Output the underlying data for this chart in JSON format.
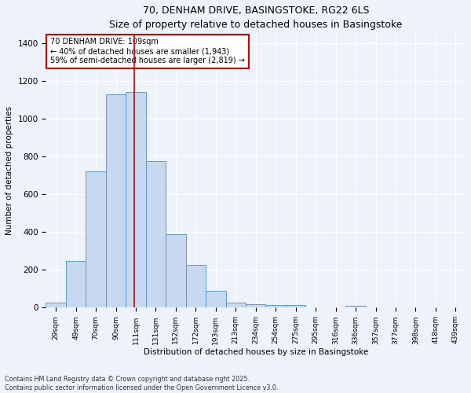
{
  "title_line1": "70, DENHAM DRIVE, BASINGSTOKE, RG22 6LS",
  "title_line2": "Size of property relative to detached houses in Basingstoke",
  "xlabel": "Distribution of detached houses by size in Basingstoke",
  "ylabel": "Number of detached properties",
  "categories": [
    "29sqm",
    "49sqm",
    "70sqm",
    "90sqm",
    "111sqm",
    "131sqm",
    "152sqm",
    "172sqm",
    "193sqm",
    "213sqm",
    "234sqm",
    "254sqm",
    "275sqm",
    "295sqm",
    "316sqm",
    "336sqm",
    "357sqm",
    "377sqm",
    "398sqm",
    "418sqm",
    "439sqm"
  ],
  "values": [
    27,
    247,
    722,
    1130,
    1145,
    775,
    390,
    228,
    90,
    28,
    20,
    15,
    13,
    0,
    0,
    10,
    0,
    0,
    0,
    0,
    0
  ],
  "bar_color": "#c7d9f0",
  "bar_edge_color": "#5b9bd5",
  "annotation_title": "70 DENHAM DRIVE: 109sqm",
  "annotation_line2": "← 40% of detached houses are smaller (1,943)",
  "annotation_line3": "59% of semi-detached houses are larger (2,819) →",
  "annotation_box_color": "#ffffff",
  "annotation_box_edge": "#cc0000",
  "footer_line1": "Contains HM Land Registry data © Crown copyright and database right 2025.",
  "footer_line2": "Contains public sector information licensed under the Open Government Licence v3.0.",
  "ylim": [
    0,
    1450
  ],
  "background_color": "#eef2fb",
  "grid_color": "#ffffff",
  "redline_index": 3.905
}
